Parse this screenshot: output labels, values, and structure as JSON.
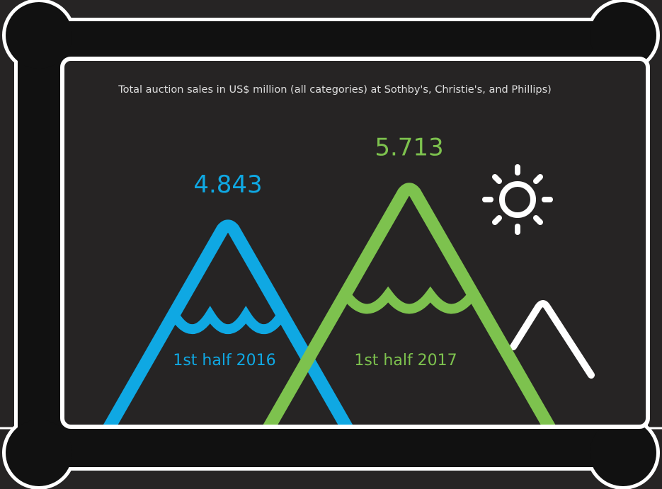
{
  "chart_data": {
    "type": "mountain",
    "title": "Total auction sales in US$ million (all categories) at Sothby's, Christie's, and Phillips)",
    "categories": [
      "1st half 2016",
      "1st half 2017"
    ],
    "values": [
      4.843,
      5.713
    ],
    "colors": [
      "#0fa8e3",
      "#7dc24e"
    ]
  }
}
